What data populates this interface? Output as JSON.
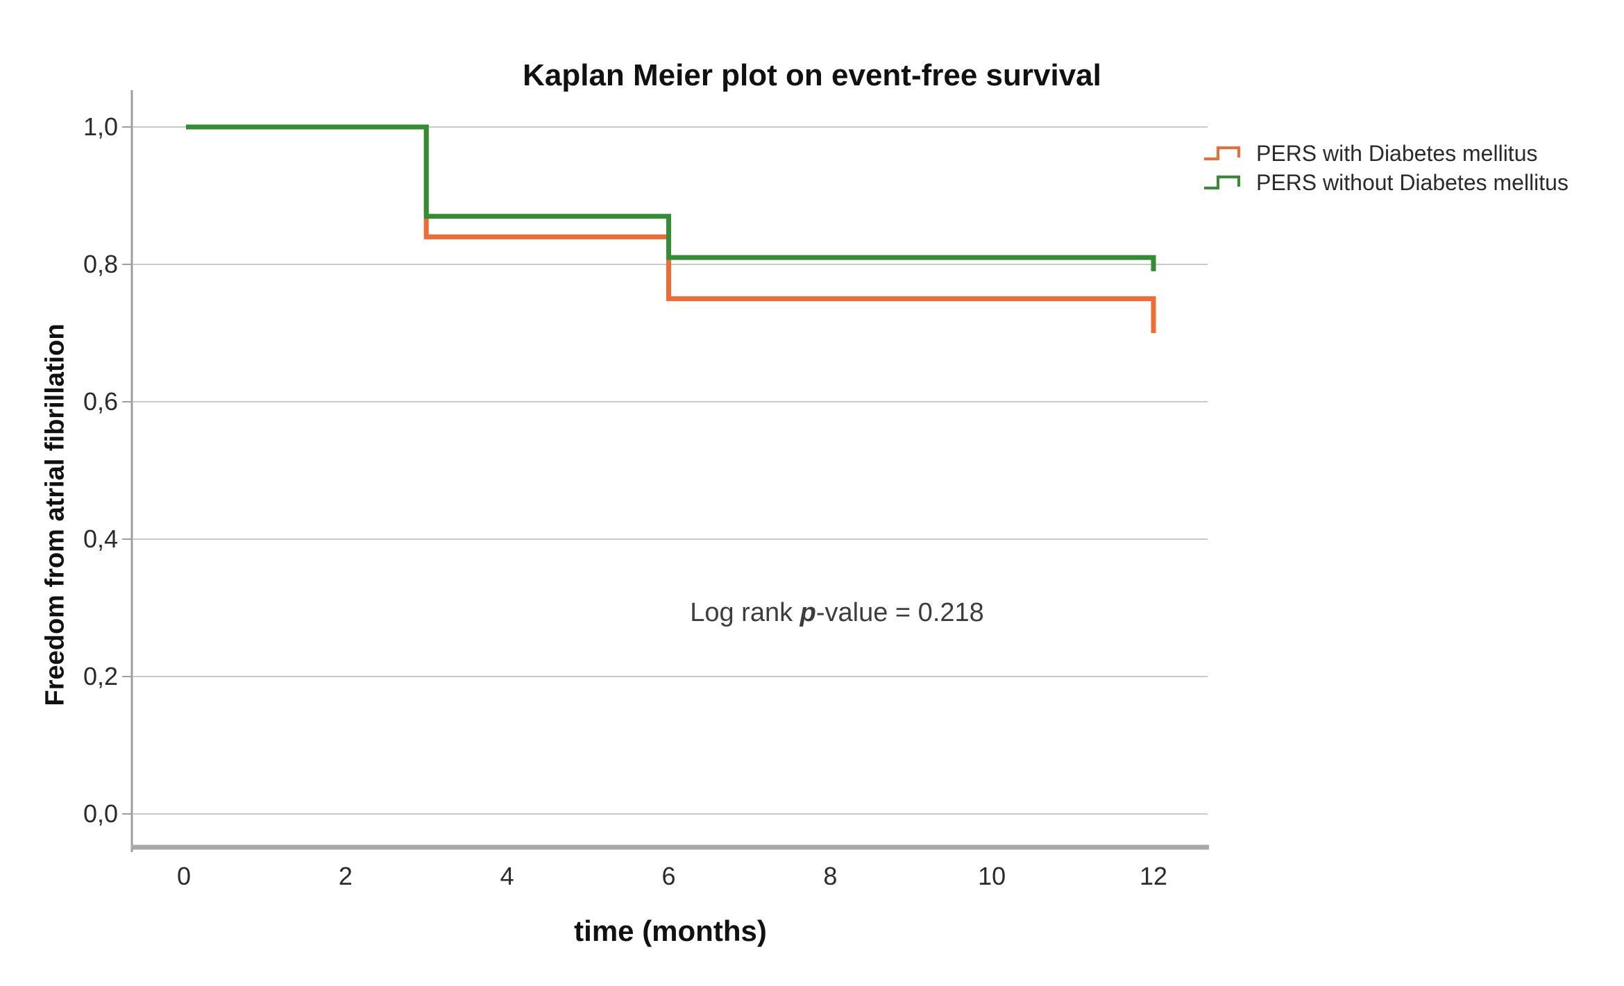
{
  "title": "Kaplan Meier plot on event-free survival",
  "annotation": {
    "prefix": "Log rank ",
    "p": "p",
    "suffix": "-value = 0.218"
  },
  "axes": {
    "x_title": "time (months)",
    "y_title": "Freedom from atrial fibrillation",
    "x_tick_labels": [
      "0",
      "2",
      "4",
      "6",
      "8",
      "10",
      "12"
    ],
    "y_tick_labels": [
      "1,0",
      "0,8",
      "0,6",
      "0,4",
      "0,2",
      "0,0"
    ]
  },
  "legend": {
    "items": [
      {
        "label": "PERS with Diabetes mellitus",
        "color": "#F06C34"
      },
      {
        "label": "PERS without Diabetes mellitus",
        "color": "#338E33"
      }
    ]
  },
  "colors": {
    "with_dm": "#F06C34",
    "without_dm": "#338E33",
    "gridline": "#C9C9C9",
    "axis": "#9E9E9E",
    "axis_baseline": "#A8A8A8"
  },
  "chart_data": {
    "type": "line",
    "subtype": "kaplan-meier-step",
    "title": "Kaplan Meier plot on event-free survival",
    "xlabel": "time (months)",
    "ylabel": "Freedom from atrial fibrillation",
    "xlim": [
      0,
      12
    ],
    "ylim": [
      0.0,
      1.0
    ],
    "x_ticks": [
      0,
      2,
      4,
      6,
      8,
      10,
      12
    ],
    "y_ticks": [
      1.0,
      0.8,
      0.6,
      0.4,
      0.2,
      0.0
    ],
    "y_tick_decimal_separator": ",",
    "grid": "horizontal",
    "legend_position": "top-right",
    "annotation": "Log rank p-value = 0.218",
    "series": [
      {
        "name": "PERS with Diabetes mellitus",
        "color": "#F06C34",
        "points": [
          [
            0,
            1.0
          ],
          [
            3,
            1.0
          ],
          [
            3,
            0.84
          ],
          [
            6,
            0.84
          ],
          [
            6,
            0.75
          ],
          [
            12,
            0.75
          ],
          [
            12,
            0.7
          ]
        ]
      },
      {
        "name": "PERS without Diabetes mellitus",
        "color": "#338E33",
        "points": [
          [
            0,
            1.0
          ],
          [
            3,
            1.0
          ],
          [
            3,
            0.87
          ],
          [
            6,
            0.87
          ],
          [
            6,
            0.81
          ],
          [
            12,
            0.81
          ],
          [
            12,
            0.79
          ]
        ]
      }
    ]
  }
}
